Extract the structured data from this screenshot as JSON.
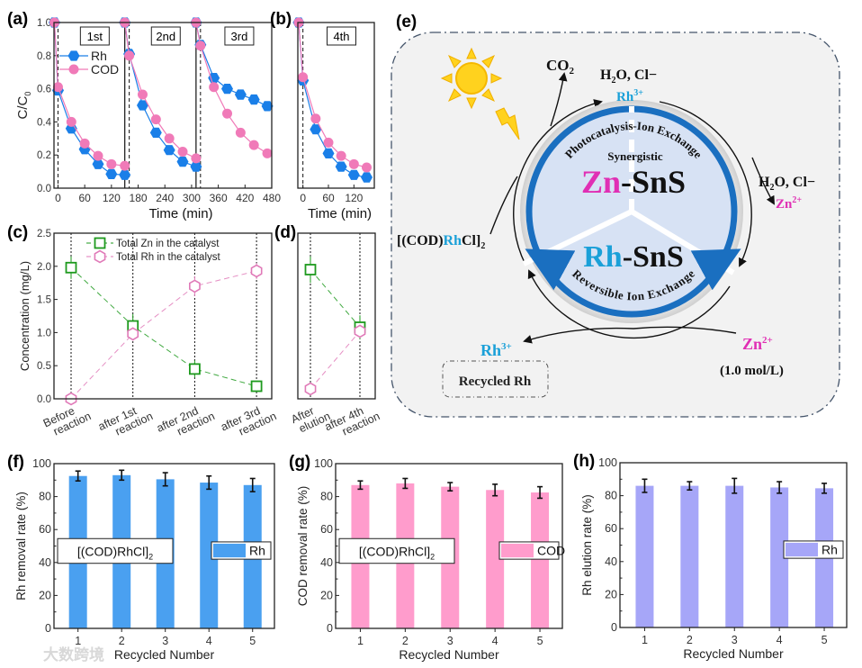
{
  "colors": {
    "rh_blue": "#1a7fe8",
    "cod_pink": "#f07ab8",
    "zn_green": "#1e9a1e",
    "rh_pink": "#e07ab8",
    "bar_blue": "#4aa0f0",
    "bar_pink": "#ff9ccc",
    "bar_violet": "#a6a6f8",
    "diagram_blue": "#1a6fc0",
    "zn_magenta": "#e02fb4",
    "rh_cyan": "#1aa0d8"
  },
  "chart_data": [
    {
      "id": "a",
      "panel_label": "(a)",
      "type": "line",
      "xlabel": "Time (min)",
      "ylabel": "C/C",
      "ylabel_sub": "0",
      "xlim": [
        -9,
        480
      ],
      "ylim": [
        0,
        1
      ],
      "xticks": [
        0,
        60,
        120,
        180,
        240,
        300,
        360,
        420,
        480
      ],
      "yticks": [
        0,
        0.2,
        0.4,
        0.6,
        0.8,
        1.0
      ],
      "cycle_labels": [
        "1st",
        "2nd",
        "3rd"
      ],
      "cycle_dividers": [
        150,
        310
      ],
      "light_on": [
        0,
        160,
        320
      ],
      "series": [
        {
          "name": "Rh",
          "color": "#1a7fe8",
          "marker": "hexagon",
          "cycles": [
            {
              "x": [
                -8,
                0,
                30,
                60,
                90,
                120,
                150
              ],
              "y": [
                1.0,
                0.59,
                0.36,
                0.235,
                0.145,
                0.085,
                0.08
              ]
            },
            {
              "x": [
                150,
                160,
                190,
                220,
                250,
                280,
                310
              ],
              "y": [
                1.0,
                0.81,
                0.5,
                0.335,
                0.23,
                0.16,
                0.13
              ]
            },
            {
              "x": [
                310,
                320,
                350,
                380,
                410,
                440,
                470
              ],
              "y": [
                1.0,
                0.865,
                0.665,
                0.6,
                0.565,
                0.535,
                0.495
              ]
            }
          ]
        },
        {
          "name": "COD",
          "color": "#f07ab8",
          "marker": "circle",
          "cycles": [
            {
              "x": [
                -8,
                0,
                30,
                60,
                90,
                120,
                150
              ],
              "y": [
                1.0,
                0.61,
                0.4,
                0.27,
                0.195,
                0.145,
                0.135
              ]
            },
            {
              "x": [
                150,
                160,
                190,
                220,
                250,
                280,
                310
              ],
              "y": [
                1.0,
                0.8,
                0.565,
                0.415,
                0.3,
                0.22,
                0.18
              ]
            },
            {
              "x": [
                310,
                320,
                350,
                380,
                410,
                440,
                470
              ],
              "y": [
                1.0,
                0.86,
                0.61,
                0.45,
                0.335,
                0.26,
                0.21
              ]
            }
          ]
        }
      ]
    },
    {
      "id": "b",
      "panel_label": "(b)",
      "type": "line",
      "xlabel": "Time (min)",
      "xlim": [
        -12,
        168
      ],
      "ylim": [
        0,
        1
      ],
      "xticks": [
        0,
        60,
        120
      ],
      "cycle_labels": [
        "4th"
      ],
      "light_on": [
        0
      ],
      "series": [
        {
          "name": "Rh",
          "color": "#1a7fe8",
          "marker": "hexagon",
          "cycles": [
            {
              "x": [
                -10,
                0,
                30,
                60,
                90,
                120,
                150
              ],
              "y": [
                1.0,
                0.65,
                0.355,
                0.21,
                0.13,
                0.08,
                0.065
              ]
            }
          ]
        },
        {
          "name": "COD",
          "color": "#f07ab8",
          "marker": "circle",
          "cycles": [
            {
              "x": [
                -10,
                0,
                30,
                60,
                90,
                120,
                150
              ],
              "y": [
                1.0,
                0.67,
                0.42,
                0.275,
                0.195,
                0.145,
                0.125
              ]
            }
          ]
        }
      ]
    },
    {
      "id": "c",
      "panel_label": "(c)",
      "type": "line",
      "ylabel": "Concentration (mg/L)",
      "ylim": [
        0,
        2.5
      ],
      "yticks": [
        0,
        0.5,
        1.0,
        1.5,
        2.0,
        2.5
      ],
      "categories": [
        [
          "Before",
          "reaction"
        ],
        [
          "after 1st",
          "reaction"
        ],
        [
          "after 2nd",
          "reaction"
        ],
        [
          "after 3rd",
          "reaction"
        ]
      ],
      "series": [
        {
          "name": "Total Zn in the catalyst",
          "color": "#1e9a1e",
          "marker": "square",
          "values": [
            1.98,
            1.1,
            0.45,
            0.19
          ],
          "errors": [
            0.17,
            0.18,
            0.13,
            0.08
          ]
        },
        {
          "name": "Total Rh in the catalyst",
          "color": "#e07ab8",
          "marker": "circle-open",
          "values": [
            0.0,
            0.98,
            1.7,
            1.93
          ],
          "errors": [
            0.0,
            0.1,
            0.15,
            0.12
          ]
        }
      ]
    },
    {
      "id": "d",
      "panel_label": "(d)",
      "type": "line",
      "ylim": [
        0,
        2.5
      ],
      "categories": [
        [
          "After",
          "elution"
        ],
        [
          "after 4th",
          "reaction"
        ]
      ],
      "series": [
        {
          "name": "Total Zn in the catalyst",
          "color": "#1e9a1e",
          "marker": "square",
          "values": [
            1.95,
            1.08
          ],
          "errors": [
            0.2,
            0.18
          ]
        },
        {
          "name": "Total Rh in the catalyst",
          "color": "#e07ab8",
          "marker": "circle-open",
          "values": [
            0.15,
            1.02
          ],
          "errors": [
            0.05,
            0.1
          ]
        }
      ]
    },
    {
      "id": "f",
      "panel_label": "(f)",
      "type": "bar",
      "xlabel": "Recycled Number",
      "ylabel": "Rh removal rate (%)",
      "ylim": [
        0,
        100
      ],
      "yticks": [
        0,
        20,
        40,
        60,
        80,
        100
      ],
      "categories": [
        "1",
        "2",
        "3",
        "4",
        "5"
      ],
      "values": [
        92.5,
        93,
        90.5,
        88.5,
        87
      ],
      "errors": [
        3,
        3,
        4,
        4,
        4
      ],
      "color": "#4aa0f0",
      "legend": "Rh",
      "annotation": "[(COD)RhCl]",
      "annotation_sub": "2"
    },
    {
      "id": "g",
      "panel_label": "(g)",
      "type": "bar",
      "xlabel": "Recycled Number",
      "ylabel": "COD removal rate (%)",
      "ylim": [
        0,
        100
      ],
      "yticks": [
        0,
        20,
        40,
        60,
        80,
        100
      ],
      "categories": [
        "1",
        "2",
        "3",
        "4",
        "5"
      ],
      "values": [
        87,
        88,
        86,
        84,
        82.5
      ],
      "errors": [
        2.5,
        3,
        2.5,
        3.5,
        3.5
      ],
      "color": "#ff9ccc",
      "legend": "COD",
      "annotation": "[(COD)RhCl]",
      "annotation_sub": "2"
    },
    {
      "id": "h",
      "panel_label": "(h)",
      "type": "bar",
      "xlabel": "Recycled Number",
      "ylabel": "Rh elution rate (%)",
      "ylim": [
        0,
        100
      ],
      "yticks": [
        0,
        20,
        40,
        60,
        80,
        100
      ],
      "categories": [
        "1",
        "2",
        "3",
        "4",
        "5"
      ],
      "values": [
        86,
        86,
        86,
        85,
        84.5
      ],
      "errors": [
        4,
        2.5,
        4.5,
        3.5,
        3
      ],
      "color": "#a6a6f8",
      "legend": "Rh"
    }
  ],
  "diagram": {
    "panel_label": "(e)",
    "co2": {
      "main": "CO",
      "sub": "2"
    },
    "top_products": {
      "h": "H",
      "sub": "2",
      "rest": "O, Cl−"
    },
    "top_rh": {
      "main": "Rh",
      "sup": "3+"
    },
    "arc_top": "Photocatalysis-Ion Exchange",
    "synergistic": "Synergistic",
    "zn_sns": {
      "metal": "Zn",
      "rest": "-SnS"
    },
    "rh_sns": {
      "metal": "Rh",
      "rest": "-SnS"
    },
    "arc_bottom": "Reversible Ion Exchange",
    "right_products": {
      "h": "H",
      "sub": "2",
      "rest": "O, Cl−"
    },
    "right_zn": {
      "main": "Zn",
      "sup": "2+"
    },
    "precursor": {
      "pre": "[(COD)",
      "rh": "Rh",
      "post": "Cl]",
      "sub": "2"
    },
    "bottom_rh": {
      "main": "Rh",
      "sup": "3+"
    },
    "recycled": "Recycled Rh",
    "bottom_zn": {
      "main": "Zn",
      "sup": "2+"
    },
    "concentration": "(1.0 mol/L)"
  },
  "watermark": "大数跨境"
}
